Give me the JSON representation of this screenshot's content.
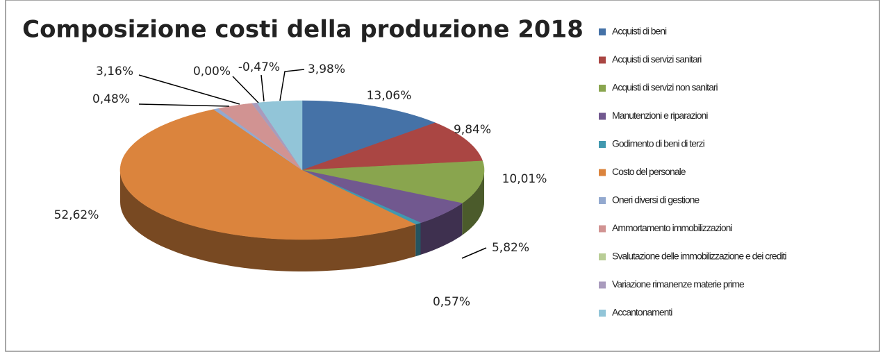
{
  "chart_data": {
    "type": "pie",
    "title": "Composizione costi della produzione 2018",
    "categories": [
      "Acquisti di beni",
      "Acquisti di servizi sanitari",
      "Acquisti di servizi non sanitari",
      "Manutenzioni e riparazioni",
      "Godimento di beni di terzi",
      "Costo del personale",
      "Oneri diversi di gestione",
      "Ammortamento immobilizzazioni",
      "Svalutazione delle immobilizzazione e dei crediti",
      "Variazione rimanenze materie prime",
      "Accantonamenti"
    ],
    "values": [
      13.06,
      9.84,
      10.01,
      5.82,
      0.57,
      52.62,
      0.48,
      3.16,
      0.0,
      -0.47,
      3.98
    ],
    "value_labels": [
      "13,06%",
      "9,84%",
      "10,01%",
      "5,82%",
      "0,57%",
      "52,62%",
      "0,48%",
      "3,16%",
      "0,00%",
      "-0,47%",
      "3,98%"
    ],
    "colors": [
      "#4572a7",
      "#aa4643",
      "#89a54e",
      "#71588f",
      "#4198af",
      "#db843d",
      "#93a9cf",
      "#d19392",
      "#b9cd96",
      "#a99bbd",
      "#92c5d8"
    ],
    "legend": "right"
  }
}
